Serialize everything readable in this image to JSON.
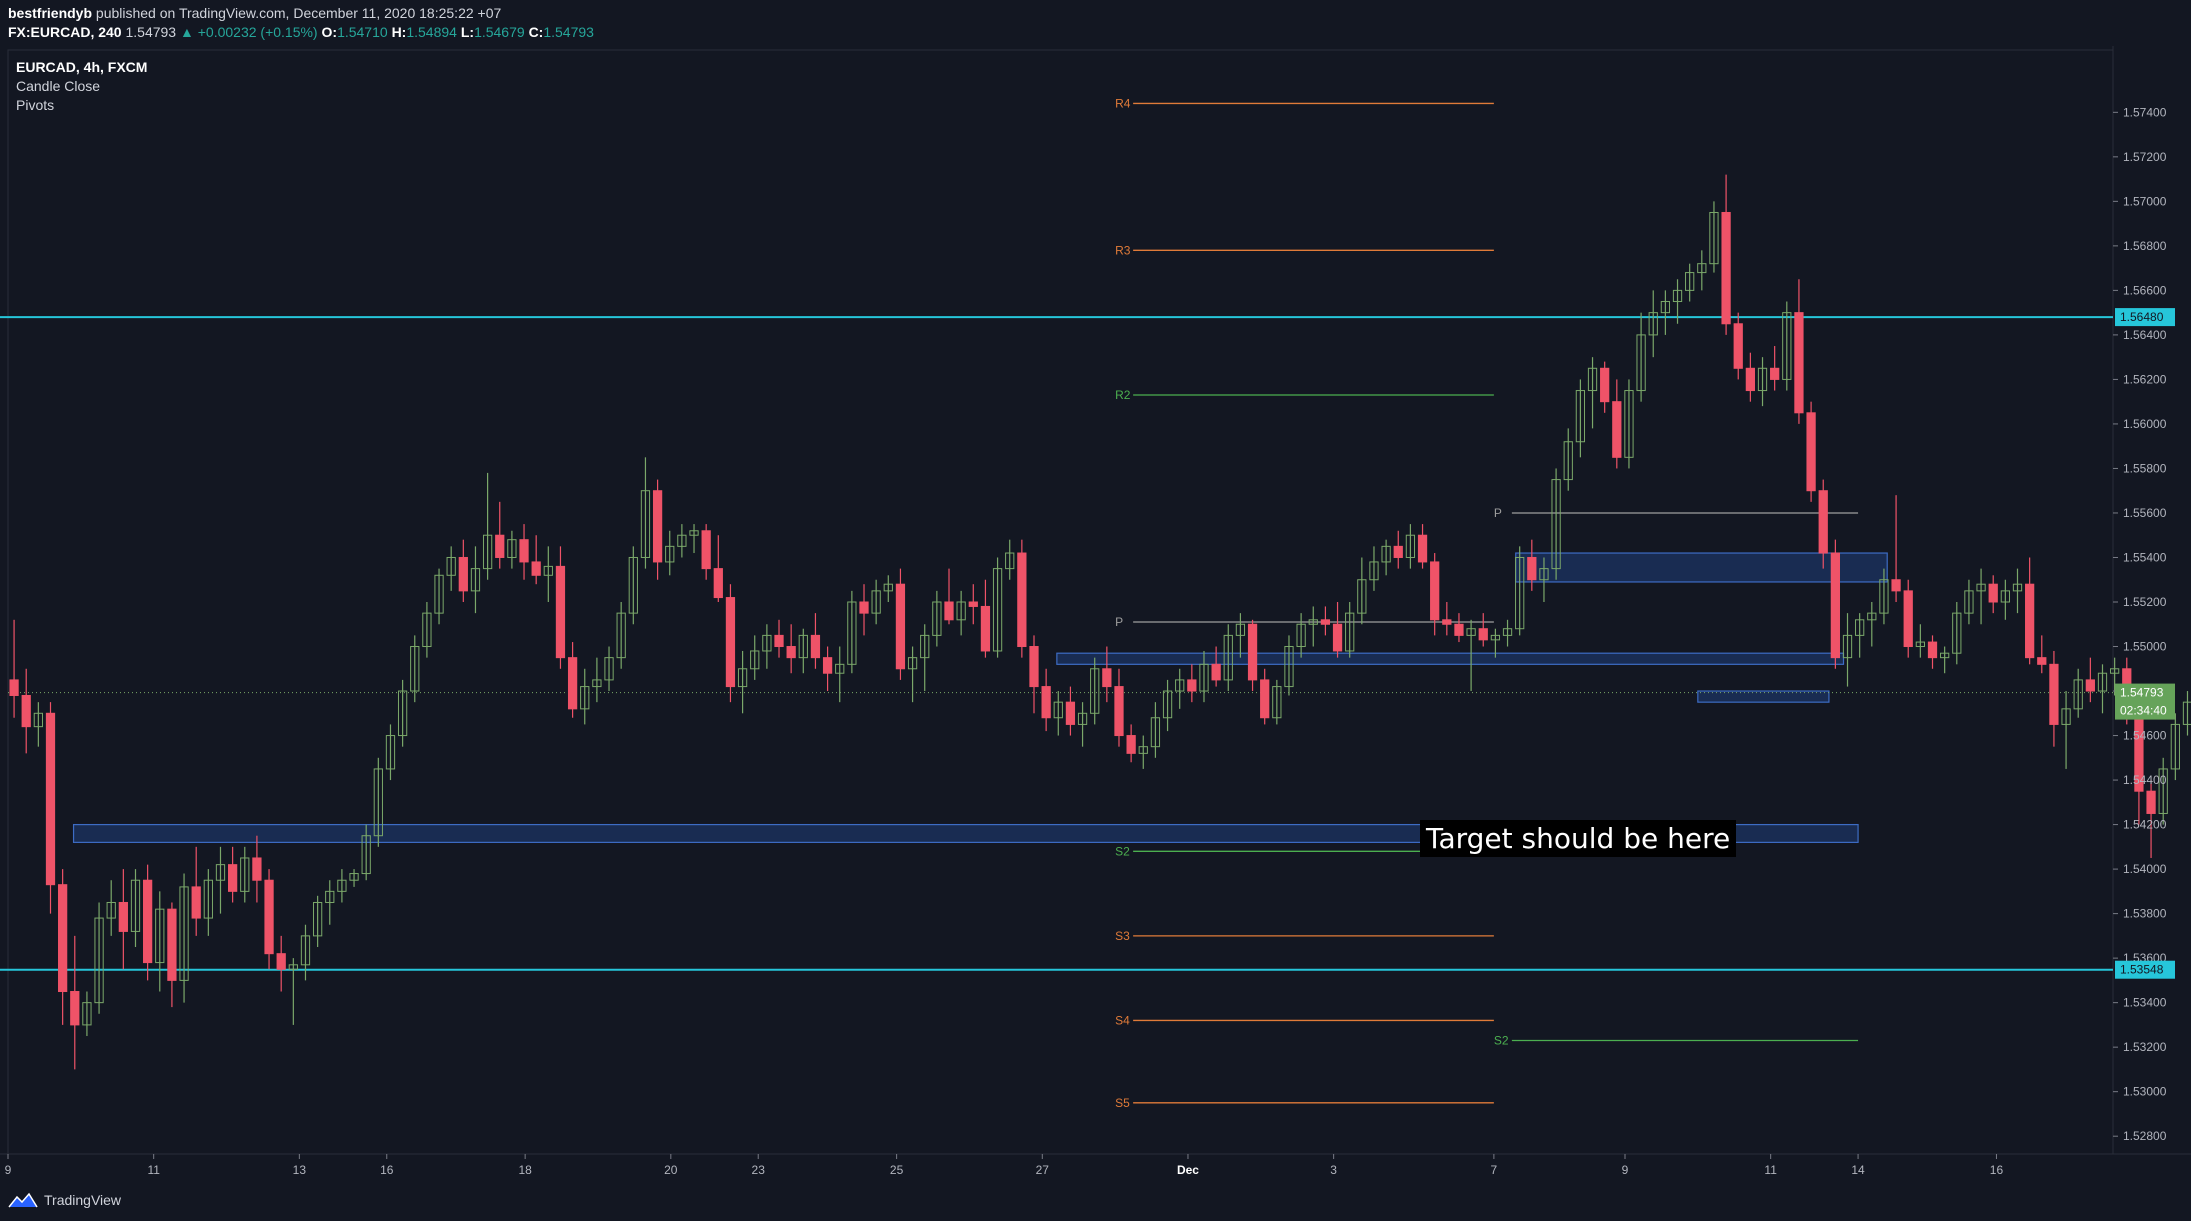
{
  "header": {
    "author": "bestfriendyb",
    "published_text": "published on TradingView.com, December 11, 2020 18:25:22 +07",
    "symbol_line": "FX:EURCAD, 240",
    "last": "1.54793",
    "change": "▲ +0.00232 (+0.15%)",
    "o_label": "O:",
    "o": "1.54710",
    "h_label": "H:",
    "h": "1.54894",
    "l_label": "L:",
    "l": "1.54679",
    "c_label": "C:",
    "c": "1.54793"
  },
  "legend": {
    "title": "EURCAD, 4h, FXCM",
    "indicator1": "Candle Close",
    "indicator2": "Pivots"
  },
  "annotation": {
    "text": "Target should be here"
  },
  "footer": {
    "brand": "TradingView"
  },
  "colors": {
    "background": "#131722",
    "up": "#7ba86a",
    "down": "#ef5368",
    "cyan": "#26c6da",
    "zone_fill": "#1c3463",
    "zone_border": "#3d6cc4",
    "pivot_orange": "#e07b39",
    "pivot_green": "#4caf50",
    "pivot_gray": "#9e9e9e"
  },
  "chart_data": {
    "type": "candlestick",
    "symbol": "EURCAD",
    "timeframe": "4h",
    "ylim": [
      1.5272,
      1.5768
    ],
    "y_ticks": [
      "1.57400",
      "1.57200",
      "1.57000",
      "1.56800",
      "1.56600",
      "1.56400",
      "1.56200",
      "1.56000",
      "1.55800",
      "1.55600",
      "1.55400",
      "1.55200",
      "1.55000",
      "1.54800",
      "1.54600",
      "1.54400",
      "1.54200",
      "1.54000",
      "1.53800",
      "1.53600",
      "1.53400",
      "1.53200",
      "1.53000",
      "1.52800"
    ],
    "x_ticks": [
      {
        "label": "9",
        "x": 0
      },
      {
        "label": "11",
        "x": 2
      },
      {
        "label": "13",
        "x": 4
      },
      {
        "label": "16",
        "x": 5.2
      },
      {
        "label": "18",
        "x": 7.1
      },
      {
        "label": "20",
        "x": 9.1
      },
      {
        "label": "23",
        "x": 10.3
      },
      {
        "label": "25",
        "x": 12.2
      },
      {
        "label": "27",
        "x": 14.2
      },
      {
        "label": "Dec",
        "x": 16.2
      },
      {
        "label": "3",
        "x": 18.2
      },
      {
        "label": "7",
        "x": 20.4
      },
      {
        "label": "9",
        "x": 22.2
      },
      {
        "label": "11",
        "x": 24.2
      },
      {
        "label": "14",
        "x": 25.4
      },
      {
        "label": "16",
        "x": 27.3
      }
    ],
    "x_range": [
      0,
      28.9
    ],
    "candles_from_day": 0,
    "candle_step_days": 0.1667,
    "candles": [
      [
        1.5485,
        1.5512,
        1.5468,
        1.5478
      ],
      [
        1.5478,
        1.549,
        1.5452,
        1.5464
      ],
      [
        1.5464,
        1.5475,
        1.5455,
        1.547
      ],
      [
        1.547,
        1.5475,
        1.538,
        1.5393
      ],
      [
        1.5393,
        1.54,
        1.533,
        1.5345
      ],
      [
        1.5345,
        1.537,
        1.531,
        1.533
      ],
      [
        1.533,
        1.5345,
        1.5325,
        1.534
      ],
      [
        1.534,
        1.5385,
        1.5335,
        1.5378
      ],
      [
        1.5378,
        1.5395,
        1.537,
        1.5385
      ],
      [
        1.5385,
        1.54,
        1.5355,
        1.5372
      ],
      [
        1.5372,
        1.54,
        1.5365,
        1.5395
      ],
      [
        1.5395,
        1.5402,
        1.535,
        1.5358
      ],
      [
        1.5358,
        1.539,
        1.5345,
        1.5382
      ],
      [
        1.5382,
        1.5385,
        1.5338,
        1.535
      ],
      [
        1.535,
        1.5398,
        1.534,
        1.5392
      ],
      [
        1.5392,
        1.541,
        1.537,
        1.5378
      ],
      [
        1.5378,
        1.54,
        1.537,
        1.5395
      ],
      [
        1.5395,
        1.541,
        1.538,
        1.5402
      ],
      [
        1.5402,
        1.541,
        1.5385,
        1.539
      ],
      [
        1.539,
        1.541,
        1.5385,
        1.5405
      ],
      [
        1.5405,
        1.5415,
        1.5385,
        1.5395
      ],
      [
        1.5395,
        1.54,
        1.5355,
        1.5362
      ],
      [
        1.5362,
        1.537,
        1.5345,
        1.5355
      ],
      [
        1.5355,
        1.536,
        1.533,
        1.5357
      ],
      [
        1.5357,
        1.5375,
        1.535,
        1.537
      ],
      [
        1.537,
        1.5388,
        1.5365,
        1.5385
      ],
      [
        1.5385,
        1.5395,
        1.5375,
        1.539
      ],
      [
        1.539,
        1.54,
        1.5385,
        1.5395
      ],
      [
        1.5395,
        1.54,
        1.5392,
        1.5398
      ],
      [
        1.5398,
        1.542,
        1.5395,
        1.5415
      ],
      [
        1.5415,
        1.545,
        1.541,
        1.5445
      ],
      [
        1.5445,
        1.5465,
        1.544,
        1.546
      ],
      [
        1.546,
        1.5485,
        1.5455,
        1.548
      ],
      [
        1.548,
        1.5505,
        1.5475,
        1.55
      ],
      [
        1.55,
        1.552,
        1.5495,
        1.5515
      ],
      [
        1.5515,
        1.5535,
        1.551,
        1.5532
      ],
      [
        1.5532,
        1.5545,
        1.5525,
        1.554
      ],
      [
        1.554,
        1.5548,
        1.552,
        1.5525
      ],
      [
        1.5525,
        1.5545,
        1.5515,
        1.5535
      ],
      [
        1.5535,
        1.5578,
        1.553,
        1.555
      ],
      [
        1.555,
        1.5565,
        1.5535,
        1.554
      ],
      [
        1.554,
        1.5552,
        1.5535,
        1.5548
      ],
      [
        1.5548,
        1.5555,
        1.553,
        1.5538
      ],
      [
        1.5538,
        1.555,
        1.5528,
        1.5532
      ],
      [
        1.5532,
        1.5545,
        1.552,
        1.5536
      ],
      [
        1.5536,
        1.5545,
        1.549,
        1.5495
      ],
      [
        1.5495,
        1.5502,
        1.5468,
        1.5472
      ],
      [
        1.5472,
        1.549,
        1.5465,
        1.5482
      ],
      [
        1.5482,
        1.5495,
        1.5475,
        1.5485
      ],
      [
        1.5485,
        1.55,
        1.548,
        1.5495
      ],
      [
        1.5495,
        1.552,
        1.549,
        1.5515
      ],
      [
        1.5515,
        1.5545,
        1.551,
        1.554
      ],
      [
        1.554,
        1.5585,
        1.5535,
        1.557
      ],
      [
        1.557,
        1.5575,
        1.553,
        1.5538
      ],
      [
        1.5538,
        1.5552,
        1.5532,
        1.5545
      ],
      [
        1.5545,
        1.5555,
        1.554,
        1.555
      ],
      [
        1.555,
        1.5555,
        1.5542,
        1.5552
      ],
      [
        1.5552,
        1.5555,
        1.553,
        1.5535
      ],
      [
        1.5535,
        1.555,
        1.552,
        1.5522
      ],
      [
        1.5522,
        1.5528,
        1.5475,
        1.5482
      ],
      [
        1.5482,
        1.5498,
        1.547,
        1.549
      ],
      [
        1.549,
        1.5505,
        1.5485,
        1.5498
      ],
      [
        1.5498,
        1.551,
        1.549,
        1.5505
      ],
      [
        1.5505,
        1.5512,
        1.5495,
        1.55
      ],
      [
        1.55,
        1.551,
        1.5488,
        1.5495
      ],
      [
        1.5495,
        1.5508,
        1.5488,
        1.5505
      ],
      [
        1.5505,
        1.5515,
        1.549,
        1.5495
      ],
      [
        1.5495,
        1.55,
        1.548,
        1.5488
      ],
      [
        1.5488,
        1.55,
        1.5475,
        1.5492
      ],
      [
        1.5492,
        1.5525,
        1.5488,
        1.552
      ],
      [
        1.552,
        1.5528,
        1.5505,
        1.5515
      ],
      [
        1.5515,
        1.553,
        1.551,
        1.5525
      ],
      [
        1.5525,
        1.5532,
        1.552,
        1.5528
      ],
      [
        1.5528,
        1.5535,
        1.5485,
        1.549
      ],
      [
        1.549,
        1.55,
        1.5475,
        1.5495
      ],
      [
        1.5495,
        1.551,
        1.548,
        1.5505
      ],
      [
        1.5505,
        1.5525,
        1.55,
        1.552
      ],
      [
        1.552,
        1.5535,
        1.551,
        1.5512
      ],
      [
        1.5512,
        1.5525,
        1.5505,
        1.552
      ],
      [
        1.552,
        1.5528,
        1.551,
        1.5518
      ],
      [
        1.5518,
        1.553,
        1.5495,
        1.5498
      ],
      [
        1.5498,
        1.554,
        1.5495,
        1.5535
      ],
      [
        1.5535,
        1.5548,
        1.553,
        1.5542
      ],
      [
        1.5542,
        1.5548,
        1.5495,
        1.55
      ],
      [
        1.55,
        1.5505,
        1.547,
        1.5482
      ],
      [
        1.5482,
        1.549,
        1.5462,
        1.5468
      ],
      [
        1.5468,
        1.548,
        1.546,
        1.5475
      ],
      [
        1.5475,
        1.5482,
        1.546,
        1.5465
      ],
      [
        1.5465,
        1.5475,
        1.5455,
        1.547
      ],
      [
        1.547,
        1.5495,
        1.5465,
        1.549
      ],
      [
        1.549,
        1.55,
        1.5475,
        1.5482
      ],
      [
        1.5482,
        1.549,
        1.5455,
        1.546
      ],
      [
        1.546,
        1.5465,
        1.5448,
        1.5452
      ],
      [
        1.5452,
        1.546,
        1.5445,
        1.5455
      ],
      [
        1.5455,
        1.5475,
        1.545,
        1.5468
      ],
      [
        1.5468,
        1.5485,
        1.5462,
        1.548
      ],
      [
        1.548,
        1.549,
        1.5472,
        1.5485
      ],
      [
        1.5485,
        1.5492,
        1.5475,
        1.548
      ],
      [
        1.548,
        1.5498,
        1.5475,
        1.5492
      ],
      [
        1.5492,
        1.55,
        1.5482,
        1.5485
      ],
      [
        1.5485,
        1.551,
        1.548,
        1.5505
      ],
      [
        1.5505,
        1.5515,
        1.5495,
        1.551
      ],
      [
        1.551,
        1.5512,
        1.548,
        1.5485
      ],
      [
        1.5485,
        1.549,
        1.5465,
        1.5468
      ],
      [
        1.5468,
        1.5485,
        1.5465,
        1.5482
      ],
      [
        1.5482,
        1.5505,
        1.5478,
        1.55
      ],
      [
        1.55,
        1.5515,
        1.5495,
        1.551
      ],
      [
        1.551,
        1.5518,
        1.55,
        1.5512
      ],
      [
        1.5512,
        1.5518,
        1.5505,
        1.551
      ],
      [
        1.551,
        1.552,
        1.5495,
        1.5498
      ],
      [
        1.5498,
        1.552,
        1.5495,
        1.5515
      ],
      [
        1.5515,
        1.554,
        1.551,
        1.553
      ],
      [
        1.553,
        1.5545,
        1.5525,
        1.5538
      ],
      [
        1.5538,
        1.5548,
        1.5532,
        1.5545
      ],
      [
        1.5545,
        1.5552,
        1.5535,
        1.554
      ],
      [
        1.554,
        1.5555,
        1.5535,
        1.555
      ],
      [
        1.555,
        1.5555,
        1.5535,
        1.5538
      ],
      [
        1.5538,
        1.5542,
        1.5505,
        1.5512
      ],
      [
        1.5512,
        1.552,
        1.5505,
        1.551
      ],
      [
        1.551,
        1.5515,
        1.5502,
        1.5505
      ],
      [
        1.5505,
        1.5512,
        1.548,
        1.5508
      ],
      [
        1.5508,
        1.5515,
        1.55,
        1.5503
      ],
      [
        1.5503,
        1.5508,
        1.5495,
        1.5505
      ],
      [
        1.5505,
        1.5512,
        1.55,
        1.5508
      ],
      [
        1.5508,
        1.5545,
        1.5505,
        1.554
      ],
      [
        1.554,
        1.5548,
        1.5525,
        1.553
      ],
      [
        1.553,
        1.554,
        1.552,
        1.5535
      ],
      [
        1.5535,
        1.558,
        1.553,
        1.5575
      ],
      [
        1.5575,
        1.5598,
        1.557,
        1.5592
      ],
      [
        1.5592,
        1.562,
        1.5585,
        1.5615
      ],
      [
        1.5615,
        1.563,
        1.5598,
        1.5625
      ],
      [
        1.5625,
        1.5628,
        1.5605,
        1.561
      ],
      [
        1.561,
        1.562,
        1.558,
        1.5585
      ],
      [
        1.5585,
        1.562,
        1.558,
        1.5615
      ],
      [
        1.5615,
        1.565,
        1.561,
        1.564
      ],
      [
        1.564,
        1.566,
        1.563,
        1.565
      ],
      [
        1.565,
        1.566,
        1.564,
        1.5655
      ],
      [
        1.5655,
        1.5665,
        1.5645,
        1.566
      ],
      [
        1.566,
        1.5672,
        1.5655,
        1.5668
      ],
      [
        1.5668,
        1.5678,
        1.566,
        1.5672
      ],
      [
        1.5672,
        1.57,
        1.5668,
        1.5695
      ],
      [
        1.5695,
        1.5712,
        1.564,
        1.5645
      ],
      [
        1.5645,
        1.565,
        1.562,
        1.5625
      ],
      [
        1.5625,
        1.5632,
        1.561,
        1.5615
      ],
      [
        1.5615,
        1.563,
        1.5608,
        1.5625
      ],
      [
        1.5625,
        1.5635,
        1.5615,
        1.562
      ],
      [
        1.562,
        1.5655,
        1.5615,
        1.565
      ],
      [
        1.565,
        1.5665,
        1.56,
        1.5605
      ],
      [
        1.5605,
        1.561,
        1.5565,
        1.557
      ],
      [
        1.557,
        1.5575,
        1.5535,
        1.5542
      ],
      [
        1.5542,
        1.5548,
        1.549,
        1.5495
      ],
      [
        1.5495,
        1.5515,
        1.5482,
        1.5505
      ],
      [
        1.5505,
        1.5515,
        1.5495,
        1.5512
      ],
      [
        1.5512,
        1.552,
        1.55,
        1.5515
      ],
      [
        1.5515,
        1.5535,
        1.551,
        1.553
      ],
      [
        1.553,
        1.5568,
        1.552,
        1.5525
      ],
      [
        1.5525,
        1.553,
        1.5495,
        1.55
      ],
      [
        1.55,
        1.551,
        1.5495,
        1.5502
      ],
      [
        1.5502,
        1.5505,
        1.549,
        1.5495
      ],
      [
        1.5495,
        1.55,
        1.5488,
        1.5497
      ],
      [
        1.5497,
        1.552,
        1.5492,
        1.5515
      ],
      [
        1.5515,
        1.553,
        1.551,
        1.5525
      ],
      [
        1.5525,
        1.5535,
        1.551,
        1.5528
      ],
      [
        1.5528,
        1.5532,
        1.5515,
        1.552
      ],
      [
        1.552,
        1.553,
        1.5512,
        1.5525
      ],
      [
        1.5525,
        1.5535,
        1.5515,
        1.5528
      ],
      [
        1.5528,
        1.554,
        1.5492,
        1.5495
      ],
      [
        1.5495,
        1.5505,
        1.5488,
        1.5492
      ],
      [
        1.5492,
        1.5498,
        1.5455,
        1.5465
      ],
      [
        1.5465,
        1.548,
        1.5445,
        1.5472
      ],
      [
        1.5472,
        1.549,
        1.5468,
        1.5485
      ],
      [
        1.5485,
        1.5495,
        1.5475,
        1.548
      ],
      [
        1.548,
        1.5492,
        1.547,
        1.5488
      ],
      [
        1.5488,
        1.5495,
        1.5478,
        1.549
      ],
      [
        1.549,
        1.5495,
        1.5465,
        1.547
      ],
      [
        1.547,
        1.5475,
        1.542,
        1.5435
      ],
      [
        1.5435,
        1.544,
        1.5405,
        1.5425
      ],
      [
        1.5425,
        1.545,
        1.542,
        1.5445
      ],
      [
        1.5445,
        1.547,
        1.544,
        1.5465
      ],
      [
        1.5465,
        1.548,
        1.546,
        1.5475
      ],
      [
        1.5475,
        1.5485,
        1.5468,
        1.5478
      ],
      [
        1.5478,
        1.5482,
        1.5445,
        1.5472
      ],
      [
        1.5472,
        1.5485,
        1.5468,
        1.5478
      ],
      [
        1.5478,
        1.549,
        1.547,
        1.5479
      ]
    ],
    "horizontal_lines": [
      {
        "price": 1.5648,
        "label": "1.56480",
        "color": "cyan"
      },
      {
        "price": 1.53548,
        "label": "1.53548",
        "color": "cyan"
      }
    ],
    "last_price": {
      "price": 1.54793,
      "label": "1.54793",
      "countdown": "02:34:40"
    },
    "zones": [
      {
        "x0": 0.9,
        "x1": 25.4,
        "top": 1.542,
        "bottom": 1.5412
      },
      {
        "x0": 14.4,
        "x1": 25.2,
        "top": 1.5497,
        "bottom": 1.5492
      },
      {
        "x0": 20.7,
        "x1": 25.8,
        "top": 1.5542,
        "bottom": 1.5529
      },
      {
        "x0": 23.2,
        "x1": 25.0,
        "top": 1.548,
        "bottom": 1.5475
      }
    ],
    "pivots": [
      {
        "label": "R4",
        "price": 1.5744,
        "x0": 15.2,
        "x1": 20.4,
        "color": "orange"
      },
      {
        "label": "R3",
        "price": 1.5678,
        "x0": 15.2,
        "x1": 20.4,
        "color": "orange"
      },
      {
        "label": "R2",
        "price": 1.5613,
        "x0": 15.2,
        "x1": 20.4,
        "color": "green"
      },
      {
        "label": "P",
        "price": 1.5511,
        "x0": 15.2,
        "x1": 20.4,
        "color": "gray"
      },
      {
        "label": "S2",
        "price": 1.5408,
        "x0": 15.2,
        "x1": 20.4,
        "color": "green"
      },
      {
        "label": "S3",
        "price": 1.537,
        "x0": 15.2,
        "x1": 20.4,
        "color": "orange"
      },
      {
        "label": "S4",
        "price": 1.5332,
        "x0": 15.2,
        "x1": 20.4,
        "color": "orange"
      },
      {
        "label": "S5",
        "price": 1.5295,
        "x0": 15.2,
        "x1": 20.4,
        "color": "orange"
      },
      {
        "label": "P",
        "price": 1.556,
        "x0": 20.4,
        "x1": 25.4,
        "color": "gray"
      },
      {
        "label": "S2",
        "price": 1.5323,
        "x0": 20.4,
        "x1": 25.4,
        "color": "green"
      }
    ]
  }
}
